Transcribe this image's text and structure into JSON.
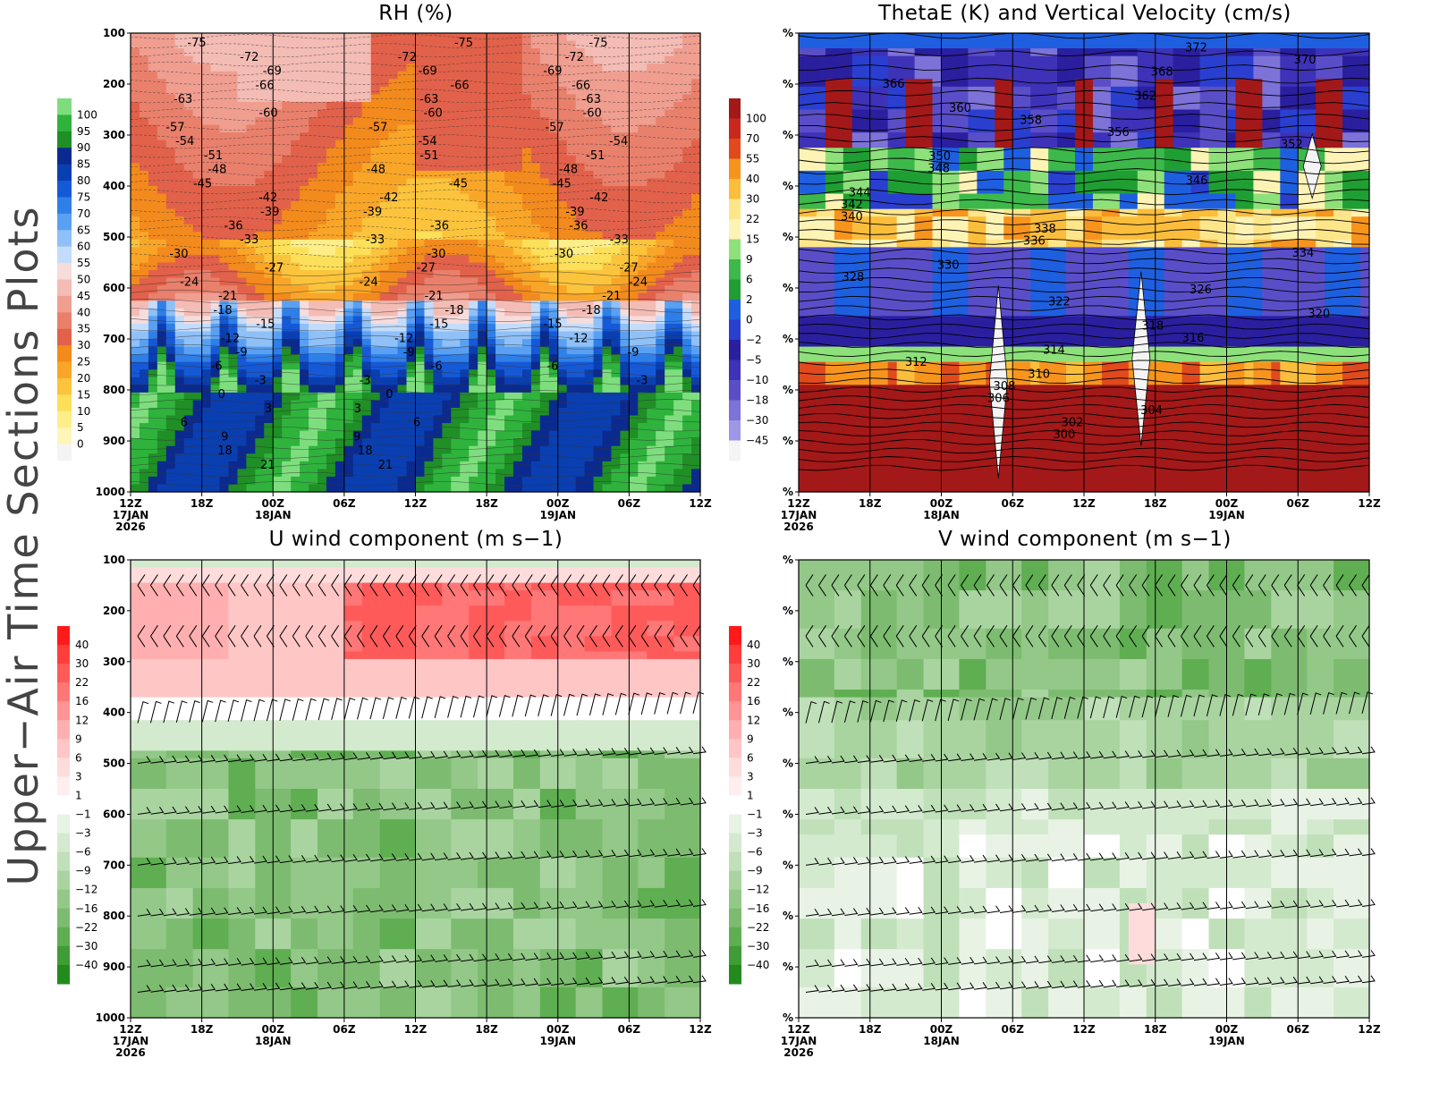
{
  "page": {
    "side_title": "Upper−Air Time Sections Plots"
  },
  "time_axis": {
    "ticks": [
      "12Z",
      "18Z",
      "00Z",
      "06Z",
      "12Z",
      "18Z",
      "00Z",
      "06Z",
      "12Z"
    ],
    "date_labels": [
      {
        "tick_index": 0,
        "lines": [
          "17JAN",
          "2026"
        ]
      },
      {
        "tick_index": 2,
        "lines": [
          "18JAN"
        ]
      },
      {
        "tick_index": 6,
        "lines": [
          "19JAN"
        ]
      }
    ]
  },
  "chart_data": [
    {
      "id": "rh",
      "type": "heatmap",
      "title": "RH (%)",
      "ylabel": "",
      "y_ticks": [
        "100",
        "200",
        "300",
        "400",
        "500",
        "600",
        "700",
        "800",
        "900",
        "1000"
      ],
      "ylim": [
        1000,
        100
      ],
      "colorbar": {
        "position": "left",
        "labels": [
          "100",
          "95",
          "90",
          "85",
          "80",
          "75",
          "70",
          "65",
          "60",
          "55",
          "50",
          "45",
          "40",
          "35",
          "30",
          "25",
          "20",
          "15",
          "10",
          "5",
          "0"
        ],
        "colors": [
          "#7ede7e",
          "#2fb33d",
          "#1f8f26",
          "#0b2a8f",
          "#0a3fb2",
          "#1659d6",
          "#2f7fe8",
          "#5aa0f2",
          "#8fc0f7",
          "#c4dcfb",
          "#f7dcdc",
          "#f3bcb4",
          "#ef9e90",
          "#e9806c",
          "#e2614a",
          "#f38a1d",
          "#f9a628",
          "#fbc43c",
          "#fde05a",
          "#fdee8a",
          "#fdf6b8",
          "#f4f4f4"
        ]
      },
      "contour_labels": [
        "-75",
        "-72",
        "-69",
        "-66",
        "-63",
        "-60",
        "-57",
        "-54",
        "-51",
        "-48",
        "-45",
        "-42",
        "-39",
        "-36",
        "-33",
        "-30",
        "-27",
        "-24",
        "-21",
        "-18",
        "-15",
        "-12",
        "-9",
        "-6",
        "-3",
        "0",
        "3",
        "6",
        "9",
        "18",
        "21"
      ]
    },
    {
      "id": "thetae",
      "type": "heatmap",
      "title": "ThetaE (K) and Vertical Velocity (cm/s)",
      "ylabel": "",
      "y_tick_label": "%",
      "colorbar": {
        "position": "left",
        "labels": [
          "100",
          "70",
          "55",
          "40",
          "30",
          "22",
          "15",
          "9",
          "6",
          "2",
          "0",
          "−2",
          "−5",
          "−10",
          "−18",
          "−30",
          "−45"
        ],
        "colors": [
          "#a31818",
          "#c8281e",
          "#e04a1c",
          "#f7941d",
          "#fbbd3c",
          "#fde68a",
          "#fdf3b4",
          "#8ee07a",
          "#3db84a",
          "#1f9e33",
          "#1e5fe0",
          "#2a3fd0",
          "#2a1f9e",
          "#3d32b8",
          "#5a4ec8",
          "#7c72d8",
          "#9e96e6",
          "#f4f4f4"
        ]
      },
      "contour_labels": [
        "372",
        "370",
        "368",
        "366",
        "362",
        "360",
        "358",
        "356",
        "352",
        "350",
        "348",
        "346",
        "344",
        "342",
        "340",
        "338",
        "336",
        "334",
        "330",
        "328",
        "326",
        "322",
        "320",
        "318",
        "316",
        "314",
        "312",
        "310",
        "308",
        "306",
        "304",
        "302",
        "300"
      ]
    },
    {
      "id": "u",
      "type": "heatmap",
      "title": "U wind component (m s−1)",
      "ylabel": "",
      "y_ticks": [
        "100",
        "200",
        "300",
        "400",
        "500",
        "600",
        "700",
        "800",
        "900",
        "1000"
      ],
      "ylim": [
        1000,
        100
      ],
      "colorbar": {
        "position": "left",
        "labels": [
          "40",
          "30",
          "22",
          "16",
          "12",
          "9",
          "6",
          "3",
          "1",
          "−1",
          "−3",
          "−6",
          "−9",
          "−12",
          "−16",
          "−22",
          "−30",
          "−40"
        ],
        "colors": [
          "#ff1a1a",
          "#ff3d3d",
          "#ff5a5a",
          "#ff7777",
          "#ff9494",
          "#ffafaf",
          "#ffc6c6",
          "#ffdcdc",
          "#ffeeee",
          "#ffffff",
          "#e8f3e6",
          "#d4eacf",
          "#bfe0b8",
          "#a9d4a0",
          "#93c888",
          "#7dbc70",
          "#5fae52",
          "#3f9c36",
          "#238a1e"
        ]
      },
      "barb_levels_hpa": [
        150,
        250,
        400,
        500,
        600,
        700,
        800,
        900,
        950
      ]
    },
    {
      "id": "v",
      "type": "heatmap",
      "title": "V wind component (m s−1)",
      "ylabel": "",
      "y_tick_label": "%",
      "colorbar": {
        "position": "left",
        "labels": [
          "40",
          "30",
          "22",
          "16",
          "12",
          "9",
          "6",
          "3",
          "1",
          "−1",
          "−3",
          "−6",
          "−9",
          "−12",
          "−16",
          "−22",
          "−30",
          "−40"
        ],
        "colors": [
          "#ff1a1a",
          "#ff3d3d",
          "#ff5a5a",
          "#ff7777",
          "#ff9494",
          "#ffafaf",
          "#ffc6c6",
          "#ffdcdc",
          "#ffeeee",
          "#ffffff",
          "#e8f3e6",
          "#d4eacf",
          "#bfe0b8",
          "#a9d4a0",
          "#93c888",
          "#7dbc70",
          "#5fae52",
          "#3f9c36",
          "#238a1e"
        ]
      },
      "barb_levels_hpa": [
        150,
        250,
        400,
        500,
        600,
        700,
        800,
        900,
        950
      ]
    }
  ]
}
